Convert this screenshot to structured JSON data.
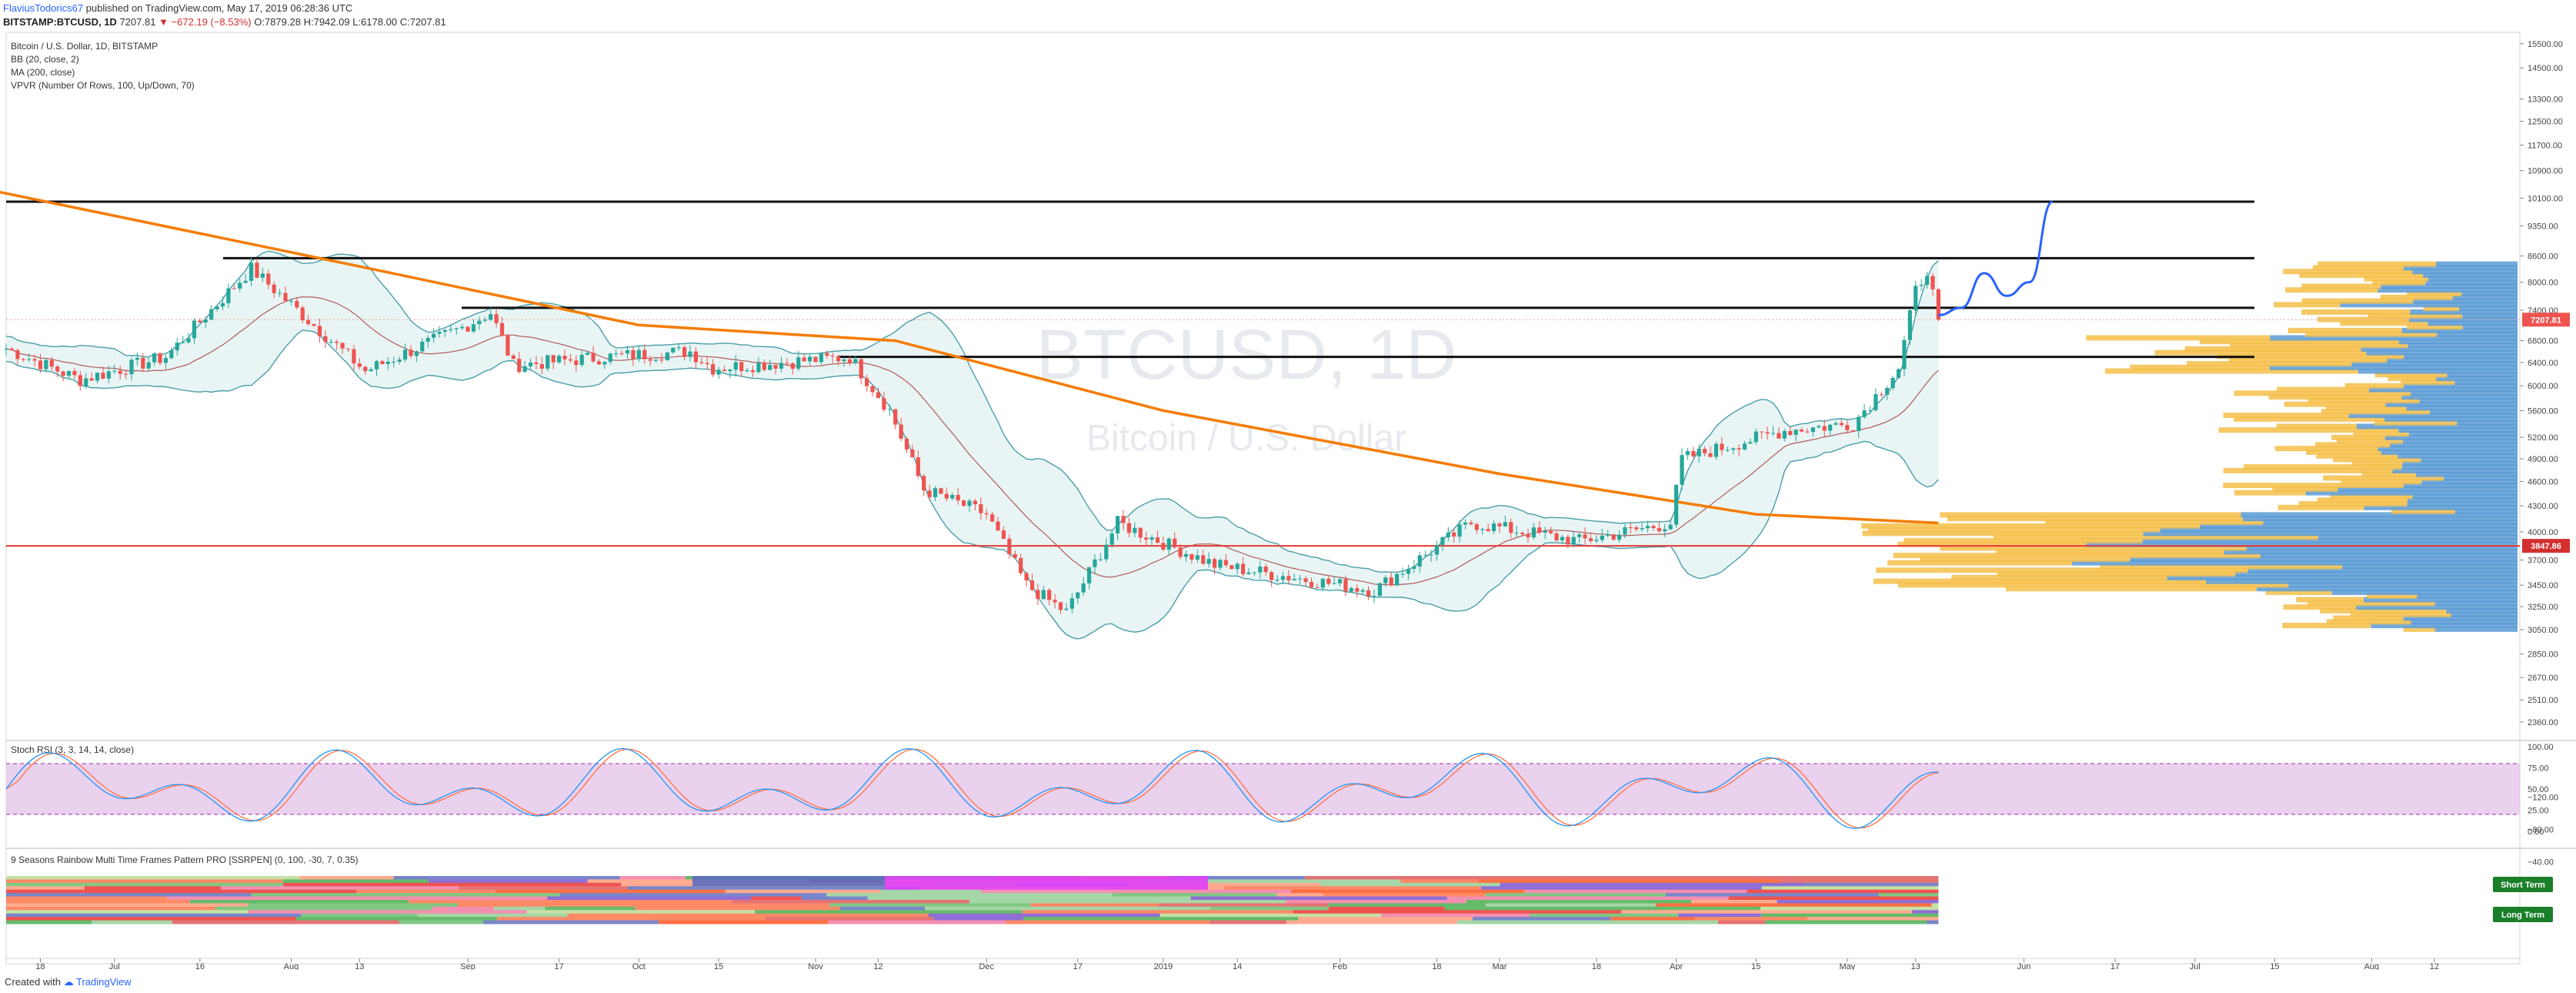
{
  "header": {
    "author": "FlaviusTodorics67",
    "published": "published on TradingView.com, May 17, 2019 06:28:36 UTC",
    "symbol": "BITSTAMP:BTCUSD, 1D",
    "last": "7207.81",
    "change": "▼ −672.19 (−8.53%)",
    "open": "O:7879.28",
    "high": "H:7942.09",
    "low": "L:6178.00",
    "close": "C:7207.81"
  },
  "legend": [
    "Bitcoin / U.S. Dollar, 1D, BITSTAMP",
    "BB (20, close, 2)",
    "MA (200, close)",
    "VPVR (Number Of Rows, 100, Up/Down, 70)"
  ],
  "watermark": {
    "symbol": "BTCUSD, 1D",
    "name": "Bitcoin / U.S. Dollar"
  },
  "price_labels": {
    "current": "7207.81",
    "support": "3847.86"
  },
  "stoch_title": "Stoch RSI (3, 3, 14, 14, close)",
  "rainbow_title": "9 Seasons Rainbow Multi Time Frames Pattern PRO [SSRPEN] (0, 100, -30, 7, 0.35)",
  "rainbow_badges": {
    "short": "Short Term",
    "long": "Long Term"
  },
  "footer": {
    "created": "Created with",
    "brand": "TradingView"
  },
  "colors": {
    "up_candle": "#26a69a",
    "down_candle": "#ef5350",
    "ma200": "#f57c00",
    "bb": "#4a9ea8",
    "bb_basis": "#b05a5a",
    "support_line": "#e53935",
    "projection": "#2962ff",
    "vp_up": "#5b9bd5",
    "vp_down": "#f5c04a",
    "stoch_k": "#2196f3",
    "stoch_d": "#ff7043",
    "stoch_band": "#e1bee7"
  },
  "chart_data": {
    "type": "candlestick",
    "price_scale": "log",
    "price_axis_ticks": [
      "15500.00",
      "14500.00",
      "13300.00",
      "12500.00",
      "11700.00",
      "10900.00",
      "10100.00",
      "9350.00",
      "8600.00",
      "8000.00",
      "7400.00",
      "6800.00",
      "6400.00",
      "6000.00",
      "5600.00",
      "5200.00",
      "4900.00",
      "4600.00",
      "4300.00",
      "4000.00",
      "3700.00",
      "3450.00",
      "3250.00",
      "3050.00",
      "2850.00",
      "2670.00",
      "2510.00",
      "2360.00"
    ],
    "time_axis_ticks": [
      "18",
      "Jul",
      "16",
      "Aug",
      "13",
      "Sep",
      "17",
      "Oct",
      "15",
      "Nov",
      "12",
      "Dec",
      "17",
      "2019",
      "14",
      "Feb",
      "18",
      "Mar",
      "18",
      "Apr",
      "15",
      "May",
      "13",
      "Jun",
      "17",
      "Jul",
      "15",
      "Aug",
      "12"
    ],
    "horizontal_levels": [
      10000,
      8550,
      7450,
      6500
    ],
    "support_level": 3847.86,
    "price_path": [
      {
        "date": "2018-06-12",
        "price": 6650
      },
      {
        "date": "2018-06-25",
        "price": 6100
      },
      {
        "date": "2018-07-10",
        "price": 6500
      },
      {
        "date": "2018-07-25",
        "price": 8300
      },
      {
        "date": "2018-08-05",
        "price": 7100
      },
      {
        "date": "2018-08-14",
        "price": 6250
      },
      {
        "date": "2018-08-31",
        "price": 7050
      },
      {
        "date": "2018-09-05",
        "price": 7350
      },
      {
        "date": "2018-09-09",
        "price": 6350
      },
      {
        "date": "2018-09-25",
        "price": 6500
      },
      {
        "date": "2018-10-10",
        "price": 6600
      },
      {
        "date": "2018-10-14",
        "price": 6300
      },
      {
        "date": "2018-11-07",
        "price": 6500
      },
      {
        "date": "2018-11-14",
        "price": 5600
      },
      {
        "date": "2018-11-20",
        "price": 4500
      },
      {
        "date": "2018-12-01",
        "price": 4200
      },
      {
        "date": "2018-12-08",
        "price": 3450
      },
      {
        "date": "2018-12-15",
        "price": 3200
      },
      {
        "date": "2018-12-24",
        "price": 4100
      },
      {
        "date": "2019-01-10",
        "price": 3650
      },
      {
        "date": "2019-02-07",
        "price": 3400
      },
      {
        "date": "2019-02-24",
        "price": 4100
      },
      {
        "date": "2019-03-15",
        "price": 3900
      },
      {
        "date": "2019-03-31",
        "price": 4100
      },
      {
        "date": "2019-04-02",
        "price": 4900
      },
      {
        "date": "2019-04-20",
        "price": 5300
      },
      {
        "date": "2019-05-02",
        "price": 5400
      },
      {
        "date": "2019-05-10",
        "price": 6300
      },
      {
        "date": "2019-05-13",
        "price": 7800
      },
      {
        "date": "2019-05-15",
        "price": 8300
      },
      {
        "date": "2019-05-17",
        "price": 7207.81
      }
    ],
    "ma200_path": [
      {
        "date": "2018-06-10",
        "price": 10300
      },
      {
        "date": "2018-08-15",
        "price": 8300
      },
      {
        "date": "2018-10-01",
        "price": 7100
      },
      {
        "date": "2018-11-15",
        "price": 6800
      },
      {
        "date": "2019-01-01",
        "price": 5600
      },
      {
        "date": "2019-03-01",
        "price": 4700
      },
      {
        "date": "2019-04-15",
        "price": 4200
      },
      {
        "date": "2019-05-17",
        "price": 4100
      }
    ],
    "projection_path": [
      {
        "date": "2019-05-17",
        "price": 7300
      },
      {
        "date": "2019-05-21",
        "price": 7450
      },
      {
        "date": "2019-05-25",
        "price": 8200
      },
      {
        "date": "2019-05-29",
        "price": 7700
      },
      {
        "date": "2019-06-02",
        "price": 8000
      },
      {
        "date": "2019-06-06",
        "price": 10000
      }
    ]
  }
}
